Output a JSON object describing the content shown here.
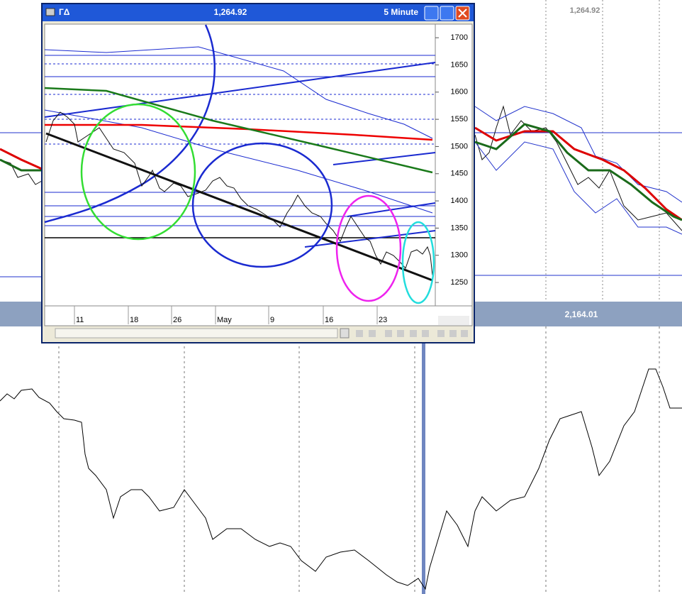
{
  "window": {
    "title": "ГΔ",
    "price": "1,264.92",
    "interval": "5 Minute"
  },
  "price_axis": {
    "range": [
      1207,
      1725
    ],
    "ticks": [
      1250,
      1300,
      1350,
      1400,
      1450,
      1500,
      1550,
      1600,
      1650,
      1700
    ]
  },
  "time_axis": {
    "labels": [
      "11",
      "18",
      "26",
      "May",
      "9",
      "16",
      "23"
    ]
  },
  "background_panes": {
    "upper_price": "1,264.92",
    "lower_price": "2,164.01"
  }
}
